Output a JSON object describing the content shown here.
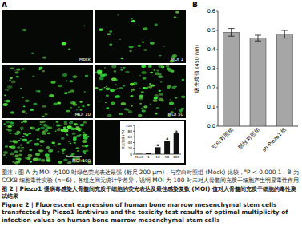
{
  "figure": {
    "panel_a": {
      "label": "A",
      "images": [
        "Mock",
        "MOI 1",
        "MOI 10",
        "MOI 50",
        "MOI 100"
      ]
    },
    "panel_b": {
      "label": "B"
    },
    "note": [
      "图注：图 A 为 MOI 为100 时绿色荧光表达最强 (标尺 200 µm)，与空白对照组 (Mock) 比较，",
      "a",
      "P < 0.000 1；B 为 CCK8 细胞毒性实验 (n=6)，各组之间无统计学差异，说明 MOI 为 100 时未对人骨髓间充质干细胞产生明显毒性作用"
    ],
    "title_zh": "图 2 | Piezo1 慢病毒感染人骨髓间充质干细胞的荧光表达及最佳感染复数 (MOI) 值对人骨髓间充质干细胞的毒性测试结果",
    "title_en": "Figure 2 | Fluorescent expression of human bone marrow mesenchymal stem cells transfected by Piezo1 lentivirus and the toxicity test results of optimal multiplicity of infection values on human bone marrow mesenchymal stem cells"
  },
  "chart_data": [
    {
      "type": "bar",
      "y_label": "荧光强度 (%)",
      "categories": [
        "Mock",
        "1",
        "10",
        "50",
        "100"
      ],
      "values": [
        1,
        3,
        24,
        46,
        72
      ],
      "significance": [
        null,
        null,
        "a",
        "a",
        "a"
      ],
      "color": "#111111",
      "ylim": [
        0,
        100
      ],
      "yticks": [
        0,
        20,
        40,
        60,
        80,
        100
      ]
    },
    {
      "type": "bar",
      "y_label": "吸光度值 (450 nm)",
      "categories": [
        "空白对照组",
        "阴性对照组",
        "sh-Piezo1 组"
      ],
      "values": [
        0.49,
        0.46,
        0.48
      ],
      "errors": [
        0.02,
        0.015,
        0.02
      ],
      "color": "#a6a6a6",
      "ylim": [
        0,
        0.6
      ],
      "yticks": [
        {
          "value": 0,
          "label": "0.0"
        },
        {
          "value": 0.1,
          "label": "0.1"
        },
        {
          "value": 0.2,
          "label": "0.2"
        },
        {
          "value": 0.3,
          "label": "0.3"
        },
        {
          "value": 0.4,
          "label": "0.4"
        },
        {
          "value": 0.5,
          "label": "0.5"
        },
        {
          "value": 0.6,
          "label": "0.6"
        }
      ]
    }
  ]
}
